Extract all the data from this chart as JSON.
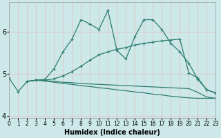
{
  "xlabel": "Humidex (Indice chaleur)",
  "bg_color": "#cce8e8",
  "line_color": "#2d7d6e",
  "lines": [
    {
      "x": [
        0,
        1,
        2,
        3,
        4,
        5,
        6,
        7,
        8,
        9,
        10,
        11,
        12,
        13,
        14,
        15,
        16,
        17,
        18,
        19,
        20,
        21,
        22,
        23
      ],
      "y": [
        4.9,
        4.58,
        4.82,
        4.85,
        4.87,
        5.12,
        5.52,
        5.82,
        6.28,
        6.18,
        6.05,
        6.5,
        5.55,
        5.35,
        5.88,
        6.28,
        6.28,
        6.05,
        5.72,
        5.52,
        5.25,
        4.87,
        4.62,
        4.55
      ],
      "marker": "+"
    },
    {
      "x": [
        2,
        3,
        4,
        5,
        6,
        7,
        8,
        9,
        10,
        11,
        12,
        13,
        14,
        15,
        16,
        17,
        18,
        19,
        20,
        21,
        22,
        23
      ],
      "y": [
        4.82,
        4.85,
        4.85,
        4.88,
        4.95,
        5.05,
        5.18,
        5.32,
        5.45,
        5.52,
        5.58,
        5.62,
        5.68,
        5.72,
        5.75,
        5.78,
        5.8,
        5.82,
        5.02,
        4.9,
        4.62,
        4.55
      ],
      "marker": "+"
    },
    {
      "x": [
        2,
        3,
        4,
        5,
        6,
        7,
        8,
        9,
        10,
        11,
        12,
        13,
        14,
        15,
        16,
        17,
        18,
        19,
        20,
        21,
        22,
        23
      ],
      "y": [
        4.82,
        4.85,
        4.83,
        4.8,
        4.77,
        4.75,
        4.72,
        4.7,
        4.67,
        4.65,
        4.62,
        4.6,
        4.57,
        4.55,
        4.52,
        4.5,
        4.47,
        4.45,
        4.43,
        4.42,
        4.42,
        4.42
      ],
      "marker": null
    },
    {
      "x": [
        2,
        3,
        4,
        5,
        6,
        7,
        8,
        9,
        10,
        11,
        12,
        13,
        14,
        15,
        16,
        17,
        18,
        19,
        20,
        21,
        22,
        23
      ],
      "y": [
        4.82,
        4.85,
        4.84,
        4.82,
        4.8,
        4.79,
        4.77,
        4.76,
        4.75,
        4.74,
        4.73,
        4.72,
        4.71,
        4.7,
        4.69,
        4.68,
        4.67,
        4.66,
        4.65,
        4.56,
        4.45,
        4.42
      ],
      "marker": null
    }
  ],
  "xlim": [
    0,
    23
  ],
  "ylim": [
    3.95,
    6.7
  ],
  "yticks": [
    4,
    5,
    6
  ],
  "xticks": [
    0,
    1,
    2,
    3,
    4,
    5,
    6,
    7,
    8,
    9,
    10,
    11,
    12,
    13,
    14,
    15,
    16,
    17,
    18,
    19,
    20,
    21,
    22,
    23
  ]
}
